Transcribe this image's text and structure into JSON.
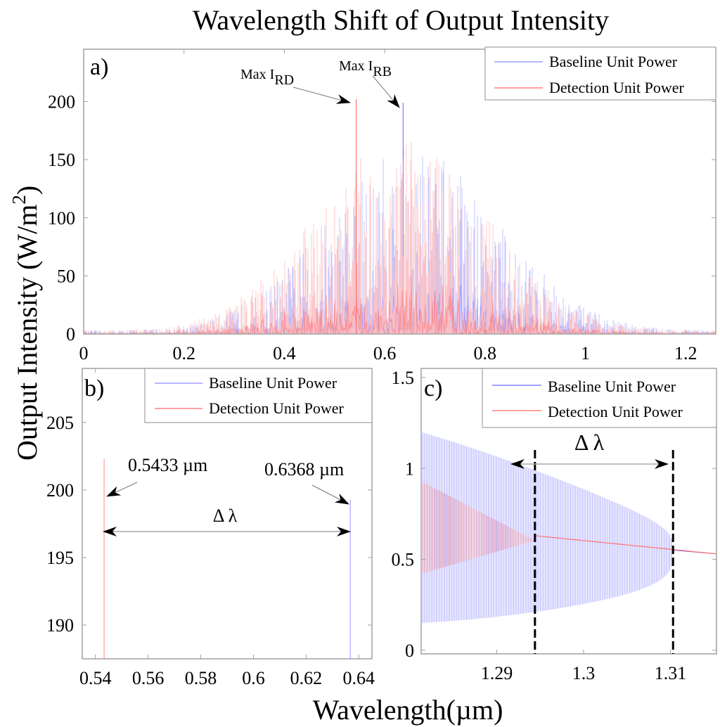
{
  "figure": {
    "title": "Wavelength Shift of Output Intensity",
    "ylabel": "Output Intensity (W/m",
    "ylabel_sup": "2",
    "ylabel_close": ")",
    "xlabel": "Wavelength(µm)"
  },
  "colors": {
    "baseline": "#8080ff",
    "baseline_light": "#b8b8ff",
    "detection": "#ff7070",
    "detection_light": "#ffc0c0",
    "axis": "#a0a0a0",
    "text": "#000000"
  },
  "chart_data": [
    {
      "panel": "a)",
      "type": "line",
      "title": "",
      "xlabel": "",
      "ylabel": "Output Intensity (W/m^2)",
      "xlim": [
        0,
        1.26
      ],
      "ylim": [
        0,
        245
      ],
      "xticks": [
        0,
        0.2,
        0.4,
        0.6,
        0.8,
        1,
        1.2
      ],
      "xtick_labels": [
        "0",
        "0.2",
        "0.4",
        "0.6",
        "0.8",
        "1",
        "1.2"
      ],
      "yticks": [
        0,
        50,
        100,
        150,
        200
      ],
      "ytick_labels": [
        "0",
        "50",
        "100",
        "150",
        "200"
      ],
      "grid": false,
      "legend": {
        "placement": "top-right",
        "entries": [
          "Baseline Unit Power",
          "Detection Unit Power"
        ]
      },
      "series": [
        {
          "name": "Baseline Unit Power",
          "description": "dense oscillating spectrum, Gaussian-like envelope centered near 0.65 µm",
          "envelope_center": 0.65,
          "envelope_peak": 160,
          "max": {
            "x": 0.6368,
            "y": 199
          }
        },
        {
          "name": "Detection Unit Power",
          "description": "dense oscillating spectrum, Gaussian-like envelope centered near 0.63 µm",
          "envelope_center": 0.63,
          "envelope_peak": 165,
          "max": {
            "x": 0.5433,
            "y": 202
          }
        }
      ],
      "annotations": [
        {
          "text": "Max I",
          "sub": "RD",
          "points_to": {
            "x": 0.5433,
            "y": 202
          }
        },
        {
          "text": "Max I",
          "sub": "RB",
          "points_to": {
            "x": 0.6368,
            "y": 199
          }
        }
      ]
    },
    {
      "panel": "b)",
      "type": "line",
      "xlim": [
        0.535,
        0.645
      ],
      "ylim": [
        187.5,
        209
      ],
      "xticks": [
        0.54,
        0.56,
        0.58,
        0.6,
        0.62,
        0.64
      ],
      "xtick_labels": [
        "0.54",
        "0.56",
        "0.58",
        "0.6",
        "0.62",
        "0.64"
      ],
      "yticks": [
        190,
        195,
        200,
        205
      ],
      "ytick_labels": [
        "190",
        "195",
        "200",
        "205"
      ],
      "grid": false,
      "legend": {
        "placement": "top-right",
        "entries": [
          "Baseline Unit Power",
          "Detection Unit Power"
        ]
      },
      "series": [
        {
          "name": "Baseline Unit Power",
          "peak": {
            "x": 0.6368,
            "y": 199.3
          }
        },
        {
          "name": "Detection Unit Power",
          "peak": {
            "x": 0.5433,
            "y": 202.3
          }
        }
      ],
      "annotations": [
        {
          "text": "0.5433 µm",
          "points_to": {
            "x": 0.5433,
            "y": 199
          }
        },
        {
          "text": "0.6368 µm",
          "points_to": {
            "x": 0.6368,
            "y": 197.8
          }
        },
        {
          "text": "Δ λ",
          "span": [
            0.5433,
            0.6368
          ],
          "y": 196.8
        }
      ]
    },
    {
      "panel": "c)",
      "type": "line",
      "xlim": [
        1.2813,
        1.3153
      ],
      "ylim": [
        -0.02,
        1.55
      ],
      "xticks": [
        1.29,
        1.3,
        1.31
      ],
      "xtick_labels": [
        "1.29",
        "1.3",
        "1.31"
      ],
      "yticks": [
        0,
        0.5,
        1,
        1.5
      ],
      "ytick_labels": [
        "0",
        "0.5",
        "1",
        "1.5"
      ],
      "grid": false,
      "legend": {
        "placement": "top-right",
        "entries": [
          "Baseline Unit Power",
          "Detection Unit Power"
        ]
      },
      "series": [
        {
          "name": "Baseline Unit Power",
          "description": "oscillation band converging to ~0.55 at 1.3103",
          "upper_start": 1.2,
          "lower_start": 0.15,
          "converge": {
            "x": 1.3103,
            "y": 0.55
          }
        },
        {
          "name": "Detection Unit Power",
          "description": "oscillation band converging to ~0.63 at 1.2944",
          "upper_start": 0.93,
          "lower_start": 0.42,
          "converge": {
            "x": 1.2944,
            "y": 0.63
          }
        }
      ],
      "annotations": [
        {
          "text": "Δ λ",
          "span": [
            1.2944,
            1.3103
          ],
          "y": 1.05
        }
      ],
      "dashed_lines_x": [
        1.2944,
        1.3103
      ]
    }
  ]
}
